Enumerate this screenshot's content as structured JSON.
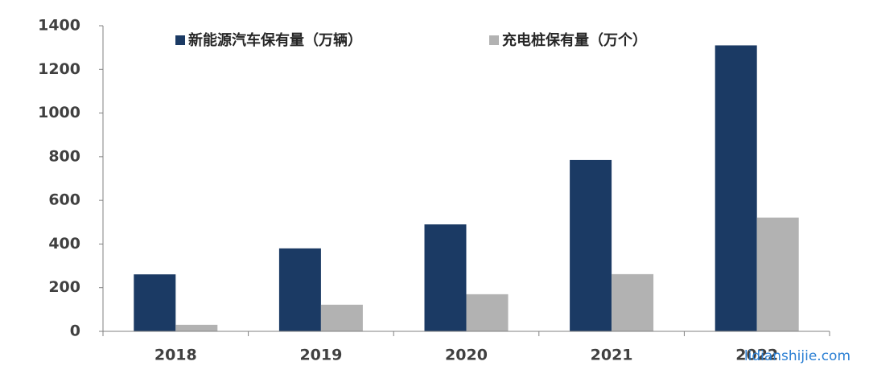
{
  "chart_data": {
    "type": "bar",
    "categories": [
      "2018",
      "2019",
      "2020",
      "2021",
      "2022"
    ],
    "series": [
      {
        "name": "新能源汽车保有量（万辆）",
        "color": "#1b3a64",
        "values": [
          261,
          380,
          490,
          785,
          1310
        ]
      },
      {
        "name": "充电桩保有量（万个）",
        "color": "#b2b2b2",
        "values": [
          30,
          122,
          170,
          262,
          521
        ]
      }
    ],
    "ylim": [
      0,
      1400
    ],
    "yticks": [
      0,
      200,
      400,
      600,
      800,
      1000,
      1200,
      1400
    ],
    "grid": false,
    "legend": "top",
    "watermark": "lidianshijie.com"
  }
}
